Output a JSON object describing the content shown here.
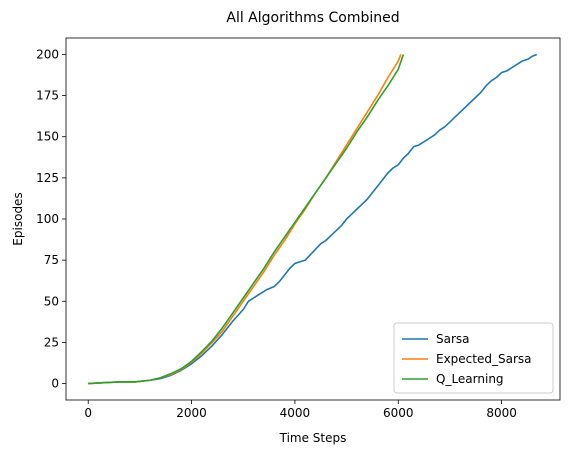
{
  "chart_data": {
    "type": "line",
    "title": "All Algorithms Combined",
    "xlabel": "Time Steps",
    "ylabel": "Episodes",
    "xlim": [
      -430,
      9130
    ],
    "ylim": [
      -10,
      210
    ],
    "xticks": [
      0,
      2000,
      4000,
      6000,
      8000
    ],
    "yticks": [
      0,
      25,
      50,
      75,
      100,
      125,
      150,
      175,
      200
    ],
    "grid": false,
    "legend_position": "lower right",
    "series": [
      {
        "name": "Sarsa",
        "color": "#1f77b4",
        "x": [
          0,
          300,
          600,
          900,
          1200,
          1400,
          1600,
          1800,
          2000,
          2200,
          2400,
          2600,
          2800,
          3000,
          3100,
          3200,
          3300,
          3450,
          3600,
          3700,
          3800,
          3900,
          4000,
          4100,
          4200,
          4350,
          4500,
          4600,
          4700,
          4800,
          4900,
          5000,
          5100,
          5200,
          5300,
          5400,
          5500,
          5600,
          5700,
          5800,
          5900,
          6000,
          6100,
          6200,
          6300,
          6400,
          6500,
          6600,
          6700,
          6800,
          6900,
          7000,
          7100,
          7200,
          7300,
          7400,
          7500,
          7600,
          7700,
          7800,
          7900,
          8000,
          8100,
          8200,
          8300,
          8400,
          8500,
          8600,
          8680
        ],
        "y": [
          0,
          0.5,
          1,
          1,
          2,
          3,
          5,
          8,
          12,
          17,
          23,
          30,
          38,
          45,
          50,
          52,
          54,
          57,
          59,
          62,
          66,
          70,
          73,
          74,
          75,
          80,
          85,
          87,
          90,
          93,
          96,
          100,
          103,
          106,
          109,
          112,
          116,
          120,
          124,
          128,
          131,
          133,
          137,
          140,
          144,
          145,
          147,
          149,
          151,
          154,
          156,
          159,
          162,
          165,
          168,
          171,
          174,
          177,
          181,
          184,
          186,
          189,
          190,
          192,
          194,
          196,
          197,
          199,
          200
        ]
      },
      {
        "name": "Expected_Sarsa",
        "color": "#ff7f0e",
        "x": [
          0,
          300,
          600,
          900,
          1200,
          1400,
          1600,
          1800,
          2000,
          2200,
          2400,
          2600,
          2800,
          3000,
          3200,
          3400,
          3600,
          3800,
          4000,
          4200,
          4400,
          4600,
          4800,
          5000,
          5200,
          5400,
          5600,
          5800,
          6000,
          6050
        ],
        "y": [
          0,
          0.5,
          1,
          1,
          2,
          3.5,
          5.5,
          8.5,
          13,
          18.5,
          25,
          32,
          41,
          50,
          59,
          68,
          78,
          87,
          97,
          106,
          116,
          125,
          135,
          145,
          155,
          165,
          175,
          186,
          196,
          200
        ]
      },
      {
        "name": "Q_Learning",
        "color": "#2ca02c",
        "x": [
          0,
          300,
          600,
          900,
          1200,
          1400,
          1600,
          1800,
          2000,
          2200,
          2400,
          2600,
          2800,
          3000,
          3200,
          3400,
          3600,
          3800,
          4000,
          4200,
          4400,
          4600,
          4800,
          5000,
          5200,
          5400,
          5600,
          5800,
          6000,
          6100
        ],
        "y": [
          0,
          0.5,
          1,
          1,
          2,
          3.5,
          6,
          9,
          13.5,
          19.5,
          26,
          34,
          43,
          52,
          61,
          70,
          80,
          89,
          98,
          107,
          116,
          125,
          134,
          143,
          153,
          162,
          172,
          181,
          191,
          200
        ]
      }
    ]
  }
}
